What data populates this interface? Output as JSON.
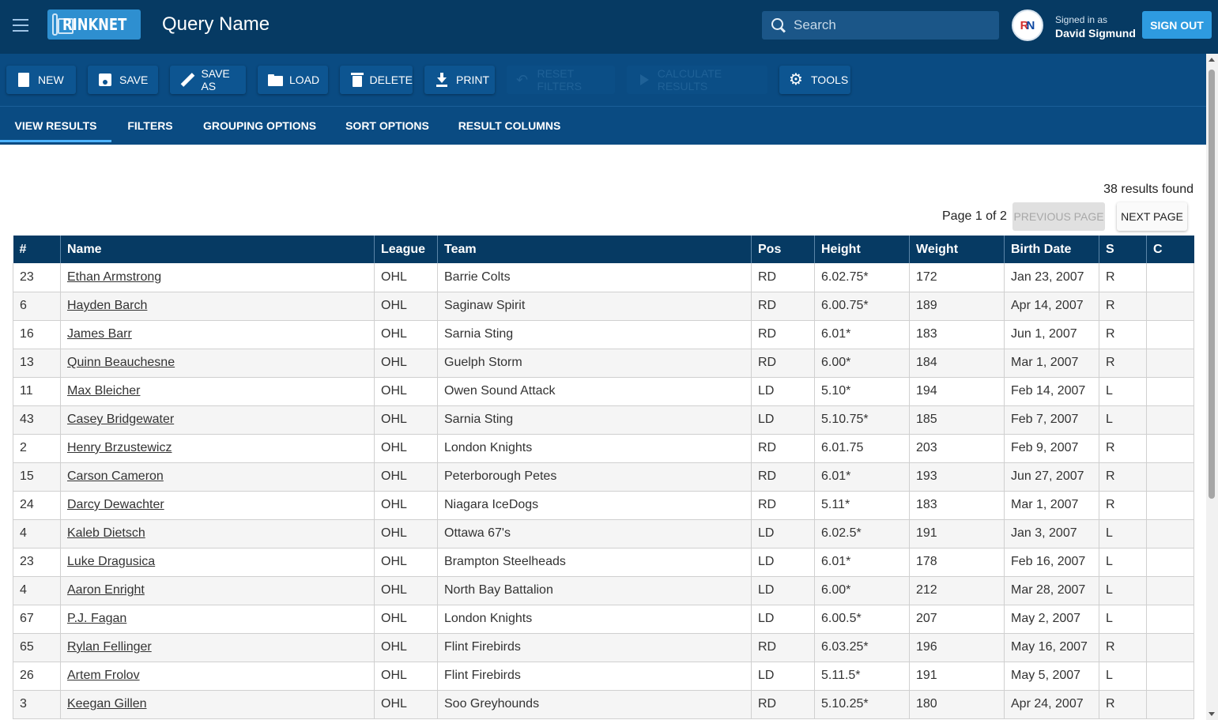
{
  "header": {
    "logo_text": "RINKNET",
    "query_name": "Query Name",
    "search_placeholder": "Search",
    "signed_in_label": "Signed in as",
    "user_name": "David Sigmund",
    "sign_out_label": "SIGN OUT"
  },
  "toolbar": {
    "new_label": "NEW",
    "save_label": "SAVE",
    "save_as_label": "SAVE AS",
    "load_label": "LOAD",
    "delete_label": "DELETE",
    "print_label": "PRINT",
    "reset_filters_label": "RESET FILTERS",
    "calculate_results_label": "CALCULATE RESULTS",
    "tools_label": "TOOLS"
  },
  "tabs": [
    {
      "label": "VIEW RESULTS",
      "active": true
    },
    {
      "label": "FILTERS",
      "active": false
    },
    {
      "label": "GROUPING OPTIONS",
      "active": false
    },
    {
      "label": "SORT OPTIONS",
      "active": false
    },
    {
      "label": "RESULT COLUMNS",
      "active": false
    }
  ],
  "results": {
    "count_text": "38 results found",
    "page_text": "Page 1 of 2",
    "prev_label": "PREVIOUS PAGE",
    "next_label": "NEXT PAGE"
  },
  "table": {
    "columns": [
      "#",
      "Name",
      "League",
      "Team",
      "Pos",
      "Height",
      "Weight",
      "Birth Date",
      "S",
      "C"
    ],
    "rows": [
      [
        "23",
        "Ethan Armstrong",
        "OHL",
        "Barrie Colts",
        "RD",
        "6.02.75*",
        "172",
        "Jan 23, 2007",
        "R",
        ""
      ],
      [
        "6",
        "Hayden Barch",
        "OHL",
        "Saginaw Spirit",
        "RD",
        "6.00.75*",
        "189",
        "Apr 14, 2007",
        "R",
        ""
      ],
      [
        "16",
        "James Barr",
        "OHL",
        "Sarnia Sting",
        "RD",
        "6.01*",
        "183",
        "Jun 1, 2007",
        "R",
        ""
      ],
      [
        "13",
        "Quinn Beauchesne",
        "OHL",
        "Guelph Storm",
        "RD",
        "6.00*",
        "184",
        "Mar 1, 2007",
        "R",
        ""
      ],
      [
        "11",
        "Max Bleicher",
        "OHL",
        "Owen Sound Attack",
        "LD",
        "5.10*",
        "194",
        "Feb 14, 2007",
        "L",
        ""
      ],
      [
        "43",
        "Casey Bridgewater",
        "OHL",
        "Sarnia Sting",
        "LD",
        "5.10.75*",
        "185",
        "Feb 7, 2007",
        "L",
        ""
      ],
      [
        "2",
        "Henry Brzustewicz",
        "OHL",
        "London Knights",
        "RD",
        "6.01.75",
        "203",
        "Feb 9, 2007",
        "R",
        ""
      ],
      [
        "15",
        "Carson Cameron",
        "OHL",
        "Peterborough Petes",
        "RD",
        "6.01*",
        "193",
        "Jun 27, 2007",
        "R",
        ""
      ],
      [
        "24",
        "Darcy Dewachter",
        "OHL",
        "Niagara IceDogs",
        "RD",
        "5.11*",
        "183",
        "Mar 1, 2007",
        "R",
        ""
      ],
      [
        "4",
        "Kaleb Dietsch",
        "OHL",
        "Ottawa 67's",
        "LD",
        "6.02.5*",
        "191",
        "Jan 3, 2007",
        "L",
        ""
      ],
      [
        "23",
        "Luke Dragusica",
        "OHL",
        "Brampton Steelheads",
        "LD",
        "6.01*",
        "178",
        "Feb 16, 2007",
        "L",
        ""
      ],
      [
        "4",
        "Aaron Enright",
        "OHL",
        "North Bay Battalion",
        "LD",
        "6.00*",
        "212",
        "Mar 28, 2007",
        "L",
        ""
      ],
      [
        "67",
        "P.J. Fagan",
        "OHL",
        "London Knights",
        "LD",
        "6.00.5*",
        "207",
        "May 2, 2007",
        "L",
        ""
      ],
      [
        "65",
        "Rylan Fellinger",
        "OHL",
        "Flint Firebirds",
        "RD",
        "6.03.25*",
        "196",
        "May 16, 2007",
        "R",
        ""
      ],
      [
        "26",
        "Artem Frolov",
        "OHL",
        "Flint Firebirds",
        "LD",
        "5.11.5*",
        "191",
        "May 5, 2007",
        "L",
        ""
      ],
      [
        "3",
        "Keegan Gillen",
        "OHL",
        "Soo Greyhounds",
        "RD",
        "5.10.25*",
        "180",
        "Apr 24, 2007",
        "R",
        ""
      ]
    ]
  },
  "colors": {
    "header_bg": "#063a63",
    "toolbar_bg": "#0a4b82",
    "accent": "#2e9be0",
    "tab_indicator": "#4fb3ff"
  }
}
